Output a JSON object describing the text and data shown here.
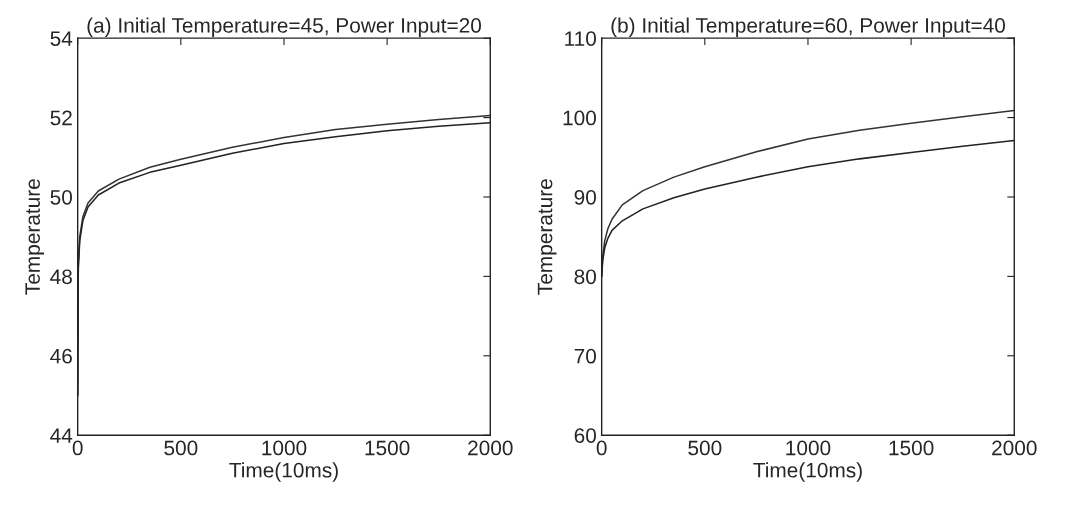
{
  "chart_data": [
    {
      "type": "line",
      "title": "(a) Initial Temperature=45, Power Input=20",
      "xlabel": "Time(10ms)",
      "ylabel": "Temperature",
      "xlim": [
        0,
        2000
      ],
      "ylim": [
        44,
        54
      ],
      "xticks": [
        0,
        500,
        1000,
        1500,
        2000
      ],
      "yticks": [
        44,
        46,
        48,
        50,
        52,
        54
      ],
      "grid": false,
      "legend": false,
      "x": [
        0,
        3,
        10,
        25,
        50,
        100,
        200,
        350,
        500,
        750,
        1000,
        1250,
        1500,
        1750,
        2000
      ],
      "series": [
        {
          "color": "#333333",
          "values": [
            45,
            48.3,
            49.0,
            49.5,
            49.85,
            50.15,
            50.45,
            50.75,
            50.95,
            51.25,
            51.5,
            51.7,
            51.83,
            51.95,
            52.05
          ]
        },
        {
          "color": "#222222",
          "values": [
            45,
            48.2,
            48.9,
            49.4,
            49.75,
            50.05,
            50.35,
            50.62,
            50.8,
            51.1,
            51.35,
            51.52,
            51.67,
            51.78,
            51.87
          ]
        }
      ]
    },
    {
      "type": "line",
      "title": "(b) Initial Temperature=60, Power Input=40",
      "xlabel": "Time(10ms)",
      "ylabel": "Temperature",
      "xlim": [
        0,
        2000
      ],
      "ylim": [
        60,
        110
      ],
      "xticks": [
        0,
        500,
        1000,
        1500,
        2000
      ],
      "yticks": [
        60,
        70,
        80,
        90,
        100,
        110
      ],
      "grid": false,
      "legend": false,
      "x": [
        0,
        5,
        15,
        30,
        50,
        100,
        200,
        350,
        500,
        750,
        1000,
        1250,
        1500,
        1750,
        2000
      ],
      "series": [
        {
          "color": "#333333",
          "values": [
            80,
            82.5,
            84.5,
            86,
            87.2,
            89,
            90.8,
            92.5,
            93.8,
            95.7,
            97.3,
            98.4,
            99.3,
            100.1,
            100.9
          ]
        },
        {
          "color": "#222222",
          "values": [
            80,
            82,
            83.6,
            84.8,
            85.8,
            87,
            88.5,
            89.9,
            91,
            92.5,
            93.8,
            94.8,
            95.6,
            96.4,
            97.1
          ]
        }
      ]
    }
  ]
}
